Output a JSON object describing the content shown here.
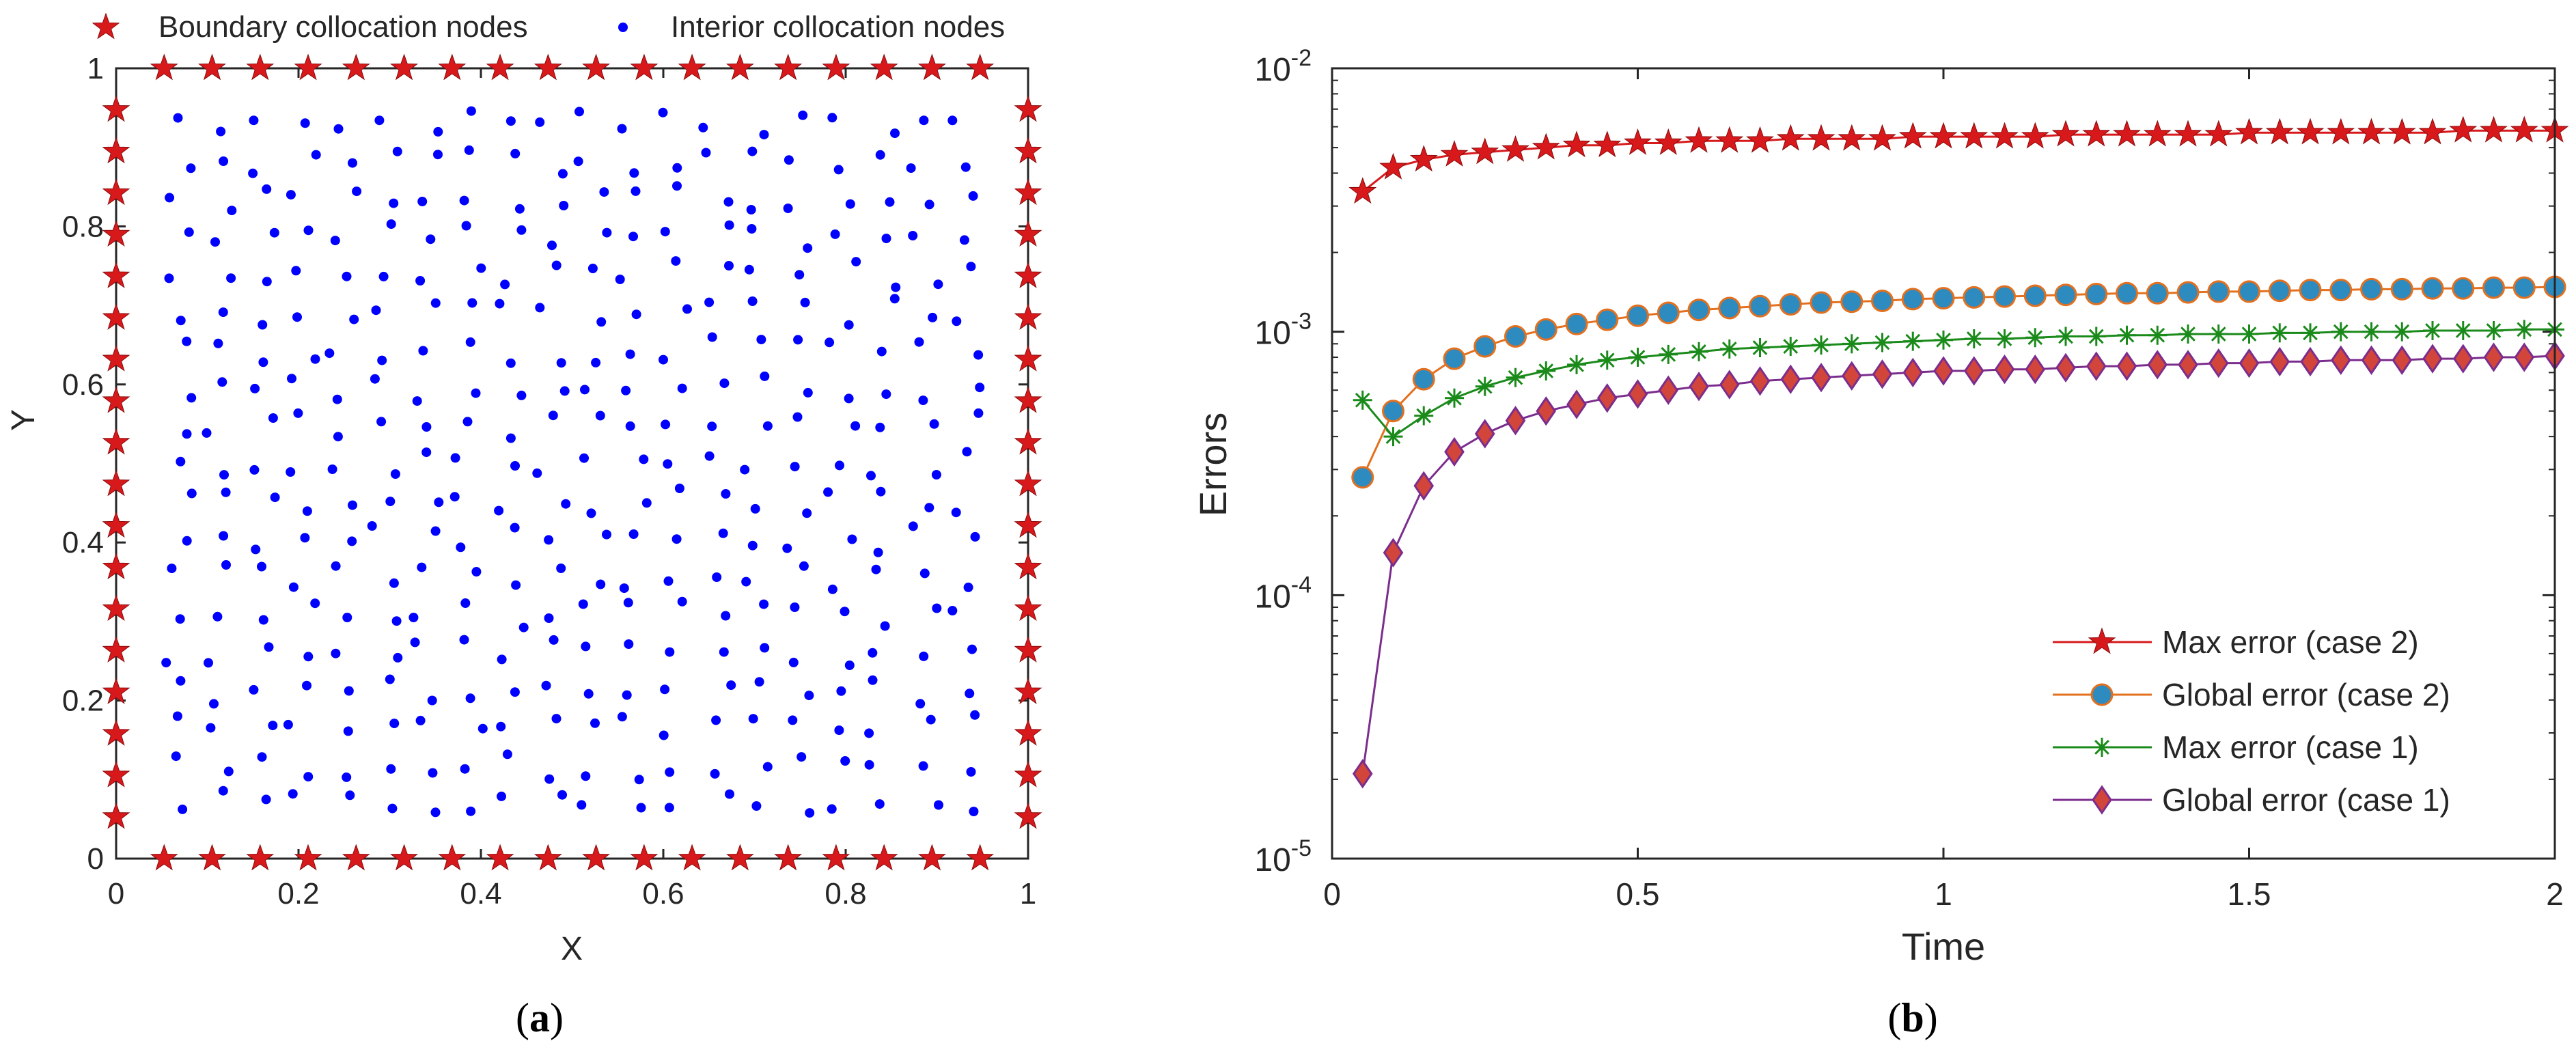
{
  "chart_data": [
    {
      "panel": "a",
      "type": "scatter",
      "panel_label_open": "(",
      "panel_label_letter": "a",
      "panel_label_close": ")",
      "xlabel": "X",
      "ylabel": "Y",
      "xlim": [
        0,
        1
      ],
      "ylim": [
        0,
        1
      ],
      "xticks": [
        "0",
        "0.2",
        "0.4",
        "0.6",
        "0.8",
        "1"
      ],
      "yticks": [
        "0",
        "0.2",
        "0.4",
        "0.6",
        "0.8",
        "1"
      ],
      "legend": {
        "placement": "top",
        "boundary_label": "Boundary collocation nodes",
        "interior_label": "Interior collocation nodes"
      },
      "colors": {
        "boundary": "#d7191c",
        "interior": "#0000ff"
      },
      "series": [
        {
          "name": "Boundary collocation nodes",
          "marker": "star",
          "spacing": 0.05263
        },
        {
          "name": "Interior collocation nodes",
          "marker": "dot",
          "count": 380
        }
      ]
    },
    {
      "panel": "b",
      "type": "line",
      "scale_y": "log",
      "panel_label_open": "(",
      "panel_label_letter": "b",
      "panel_label_close": ")",
      "xlabel": "Time",
      "ylabel": "Errors",
      "xlim": [
        0,
        2
      ],
      "ylim": [
        1e-05,
        0.01
      ],
      "xticks": [
        "0",
        "0.5",
        "1",
        "1.5",
        "2"
      ],
      "yticks": [
        {
          "base": "10",
          "exp": "-5",
          "value": 1e-05
        },
        {
          "base": "10",
          "exp": "-4",
          "value": 0.0001
        },
        {
          "base": "10",
          "exp": "-3",
          "value": 0.001
        },
        {
          "base": "10",
          "exp": "-2",
          "value": 0.01
        }
      ],
      "legend_placement": "bottom-right",
      "x": [
        0.05,
        0.1,
        0.15,
        0.2,
        0.25,
        0.3,
        0.35,
        0.4,
        0.45,
        0.5,
        0.55,
        0.6,
        0.65,
        0.7,
        0.75,
        0.8,
        0.85,
        0.9,
        0.95,
        1.0,
        1.05,
        1.1,
        1.15,
        1.2,
        1.25,
        1.3,
        1.35,
        1.4,
        1.45,
        1.5,
        1.55,
        1.6,
        1.65,
        1.7,
        1.75,
        1.8,
        1.85,
        1.9,
        1.95,
        2.0
      ],
      "series": [
        {
          "name": "Max error (case 2)",
          "marker": "star",
          "line_color": "#d7191c",
          "marker_color": "#d7191c",
          "values": [
            0.0034,
            0.0042,
            0.0045,
            0.0047,
            0.0048,
            0.0049,
            0.005,
            0.0051,
            0.0051,
            0.0052,
            0.0052,
            0.0053,
            0.0053,
            0.0053,
            0.0054,
            0.0054,
            0.0054,
            0.0054,
            0.0055,
            0.0055,
            0.0055,
            0.0055,
            0.0055,
            0.0056,
            0.0056,
            0.0056,
            0.0056,
            0.0056,
            0.0056,
            0.0057,
            0.0057,
            0.0057,
            0.0057,
            0.0057,
            0.0057,
            0.0057,
            0.0058,
            0.0058,
            0.0058,
            0.0058
          ]
        },
        {
          "name": "Global error (case 2)",
          "marker": "circle",
          "line_color": "#e3701e",
          "marker_color": "#2e8bc0",
          "values": [
            0.00028,
            0.0005,
            0.00066,
            0.00079,
            0.00088,
            0.00096,
            0.00102,
            0.00107,
            0.00111,
            0.00115,
            0.00118,
            0.00121,
            0.00123,
            0.00125,
            0.00127,
            0.00129,
            0.0013,
            0.00131,
            0.00133,
            0.00134,
            0.00135,
            0.00136,
            0.00137,
            0.00138,
            0.00139,
            0.0014,
            0.0014,
            0.00141,
            0.00142,
            0.00142,
            0.00143,
            0.00144,
            0.00144,
            0.00145,
            0.00145,
            0.00146,
            0.00146,
            0.00147,
            0.00147,
            0.00148
          ]
        },
        {
          "name": "Max error (case 1)",
          "marker": "asterisk",
          "line_color": "#1a8a1a",
          "marker_color": "#1a8a1a",
          "values": [
            0.00055,
            0.0004,
            0.00048,
            0.00056,
            0.00062,
            0.00067,
            0.00071,
            0.00075,
            0.00078,
            0.0008,
            0.00082,
            0.00084,
            0.00086,
            0.00087,
            0.00088,
            0.00089,
            0.0009,
            0.00091,
            0.00092,
            0.00093,
            0.00094,
            0.00094,
            0.00095,
            0.00096,
            0.00096,
            0.00097,
            0.00097,
            0.00098,
            0.00098,
            0.00098,
            0.00099,
            0.00099,
            0.001,
            0.001,
            0.001,
            0.00101,
            0.00101,
            0.00101,
            0.00102,
            0.00102
          ]
        },
        {
          "name": "Global error (case 1)",
          "marker": "diamond",
          "line_color": "#7b2d8e",
          "marker_color": "#d2453a",
          "values": [
            2.1e-05,
            0.000145,
            0.00026,
            0.00035,
            0.00041,
            0.00046,
            0.0005,
            0.00053,
            0.00056,
            0.00058,
            0.0006,
            0.00062,
            0.00063,
            0.00065,
            0.00066,
            0.00067,
            0.00068,
            0.00069,
            0.0007,
            0.00071,
            0.00071,
            0.00072,
            0.00072,
            0.00073,
            0.00074,
            0.00074,
            0.00075,
            0.00075,
            0.00076,
            0.00076,
            0.00077,
            0.00077,
            0.00078,
            0.00078,
            0.00078,
            0.00079,
            0.00079,
            0.0008,
            0.0008,
            0.00081
          ]
        }
      ]
    }
  ]
}
